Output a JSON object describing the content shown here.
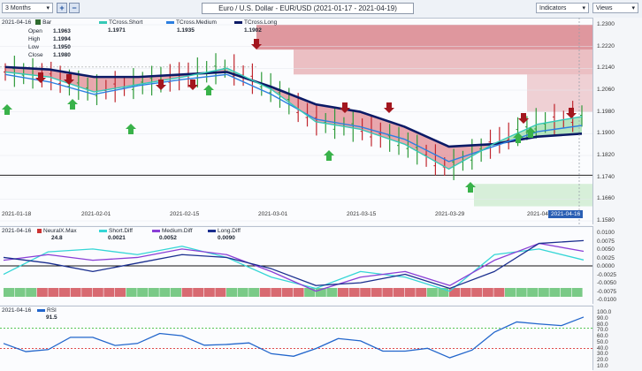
{
  "toolbar": {
    "period": "3 Months",
    "zoom_in": "+",
    "zoom_out": "−",
    "title": "Euro / U.S. Dollar - EUR/USD (2021-01-17 - 2021-04-19)",
    "indicators": "Indicators",
    "views": "Views"
  },
  "main": {
    "date": "2021-04-16",
    "series_type": "Bar",
    "ohlc": {
      "open_label": "Open",
      "open": "1.1963",
      "high_label": "High",
      "high": "1.1994",
      "low_label": "Low",
      "low": "1.1950",
      "close_label": "Close",
      "close": "1.1980"
    },
    "legend": [
      {
        "name": "TCross.Short",
        "value": "1.1971",
        "color": "#35c9b7"
      },
      {
        "name": "TCross.Medium",
        "value": "1.1935",
        "color": "#2c7fe0"
      },
      {
        "name": "TCross.Long",
        "value": "1.1902",
        "color": "#0b1a66"
      }
    ],
    "y_ticks": [
      "1.2300",
      "1.2220",
      "1.2140",
      "1.2060",
      "1.1980",
      "1.1900",
      "1.1820",
      "1.1740",
      "1.1660",
      "1.1580"
    ],
    "x_ticks": [
      "2021-01-18",
      "2021-02-01",
      "2021-02-15",
      "2021-03-01",
      "2021-03-15",
      "2021-03-29",
      "2021-04-1"
    ],
    "cursor_date": "2021-04-16"
  },
  "osc": {
    "date": "2021-04-16",
    "legend": [
      {
        "name": "NeuralX.Max",
        "value": "24.8",
        "color": "#cc3333"
      },
      {
        "name": "Short.Diff",
        "value": "0.0021",
        "color": "#35d6d6"
      },
      {
        "name": "Medium.Diff",
        "value": "0.0052",
        "color": "#8a3fd6"
      },
      {
        "name": "Long.Diff",
        "value": "0.0090",
        "color": "#1b2f8f"
      }
    ],
    "y_ticks": [
      "0.0100",
      "0.0075",
      "0.0050",
      "0.0025",
      "0.0000",
      "-0.0025",
      "-0.0050",
      "-0.0075",
      "-0.0100"
    ]
  },
  "rsi": {
    "date": "2021-04-16",
    "name": "RSI",
    "value": "91.5",
    "color": "#2266cc",
    "y_ticks": [
      "100.0",
      "90.0",
      "80.0",
      "70.0",
      "60.0",
      "50.0",
      "40.0",
      "30.0",
      "20.0",
      "10.0"
    ]
  },
  "chart_data": [
    {
      "type": "line",
      "title": "Euro / U.S. Dollar - EUR/USD (2021-01-17 - 2021-04-19)",
      "x": [
        "2021-01-18",
        "2021-01-25",
        "2021-02-01",
        "2021-02-08",
        "2021-02-15",
        "2021-02-22",
        "2021-03-01",
        "2021-03-08",
        "2021-03-15",
        "2021-03-22",
        "2021-03-29",
        "2021-04-05",
        "2021-04-12",
        "2021-04-16"
      ],
      "series": [
        {
          "name": "TCross.Short",
          "values": [
            1.215,
            1.213,
            1.207,
            1.21,
            1.213,
            1.2165,
            1.208,
            1.195,
            1.192,
            1.186,
            1.176,
            1.186,
            1.194,
            1.1971
          ]
        },
        {
          "name": "TCross.Medium",
          "values": [
            1.214,
            1.211,
            1.206,
            1.2095,
            1.212,
            1.214,
            1.206,
            1.196,
            1.193,
            1.188,
            1.179,
            1.185,
            1.191,
            1.1935
          ]
        },
        {
          "name": "TCross.Long",
          "values": [
            1.217,
            1.216,
            1.213,
            1.213,
            1.214,
            1.215,
            1.209,
            1.202,
            1.199,
            1.193,
            1.185,
            1.186,
            1.189,
            1.1902
          ]
        }
      ],
      "ylim": [
        1.158,
        1.234
      ],
      "grid": true
    },
    {
      "type": "line",
      "series": [
        {
          "name": "Short.Diff",
          "values": [
            -0.003,
            0.005,
            0.006,
            0.004,
            0.007,
            0.003,
            -0.004,
            -0.008,
            -0.002,
            -0.004,
            -0.009,
            0.004,
            0.006,
            0.0021
          ]
        },
        {
          "name": "Medium.Diff",
          "values": [
            0.002,
            0.004,
            0.002,
            0.003,
            0.006,
            0.004,
            -0.002,
            -0.009,
            -0.004,
            -0.002,
            -0.007,
            0.002,
            0.008,
            0.0052
          ]
        },
        {
          "name": "Long.Diff",
          "values": [
            0.003,
            0.001,
            -0.002,
            0.001,
            0.004,
            0.003,
            -0.001,
            -0.007,
            -0.006,
            -0.003,
            -0.008,
            -0.002,
            0.008,
            0.009
          ]
        }
      ],
      "ylim": [
        -0.011,
        0.011
      ]
    },
    {
      "type": "line",
      "series": [
        {
          "name": "RSI",
          "values": [
            40,
            28,
            52,
            40,
            55,
            38,
            20,
            30,
            45,
            25,
            12,
            62,
            78,
            91.5
          ]
        }
      ],
      "ylim": [
        0,
        100
      ],
      "hlines": [
        70,
        30
      ]
    }
  ]
}
